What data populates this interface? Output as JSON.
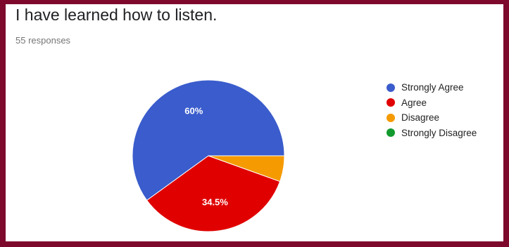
{
  "header": {
    "title": "I have learned how to listen.",
    "responses": "55 responses"
  },
  "chart_data": {
    "type": "pie",
    "categories": [
      "Strongly Agree",
      "Agree",
      "Disagree",
      "Strongly Disagree"
    ],
    "values": [
      60,
      34.5,
      5.5,
      0
    ],
    "data_labels": [
      "60%",
      "34.5%",
      "",
      ""
    ],
    "colors": [
      "#3a5ccc",
      "#e00000",
      "#f59a00",
      "#129a2e"
    ],
    "legend_position": "right"
  }
}
